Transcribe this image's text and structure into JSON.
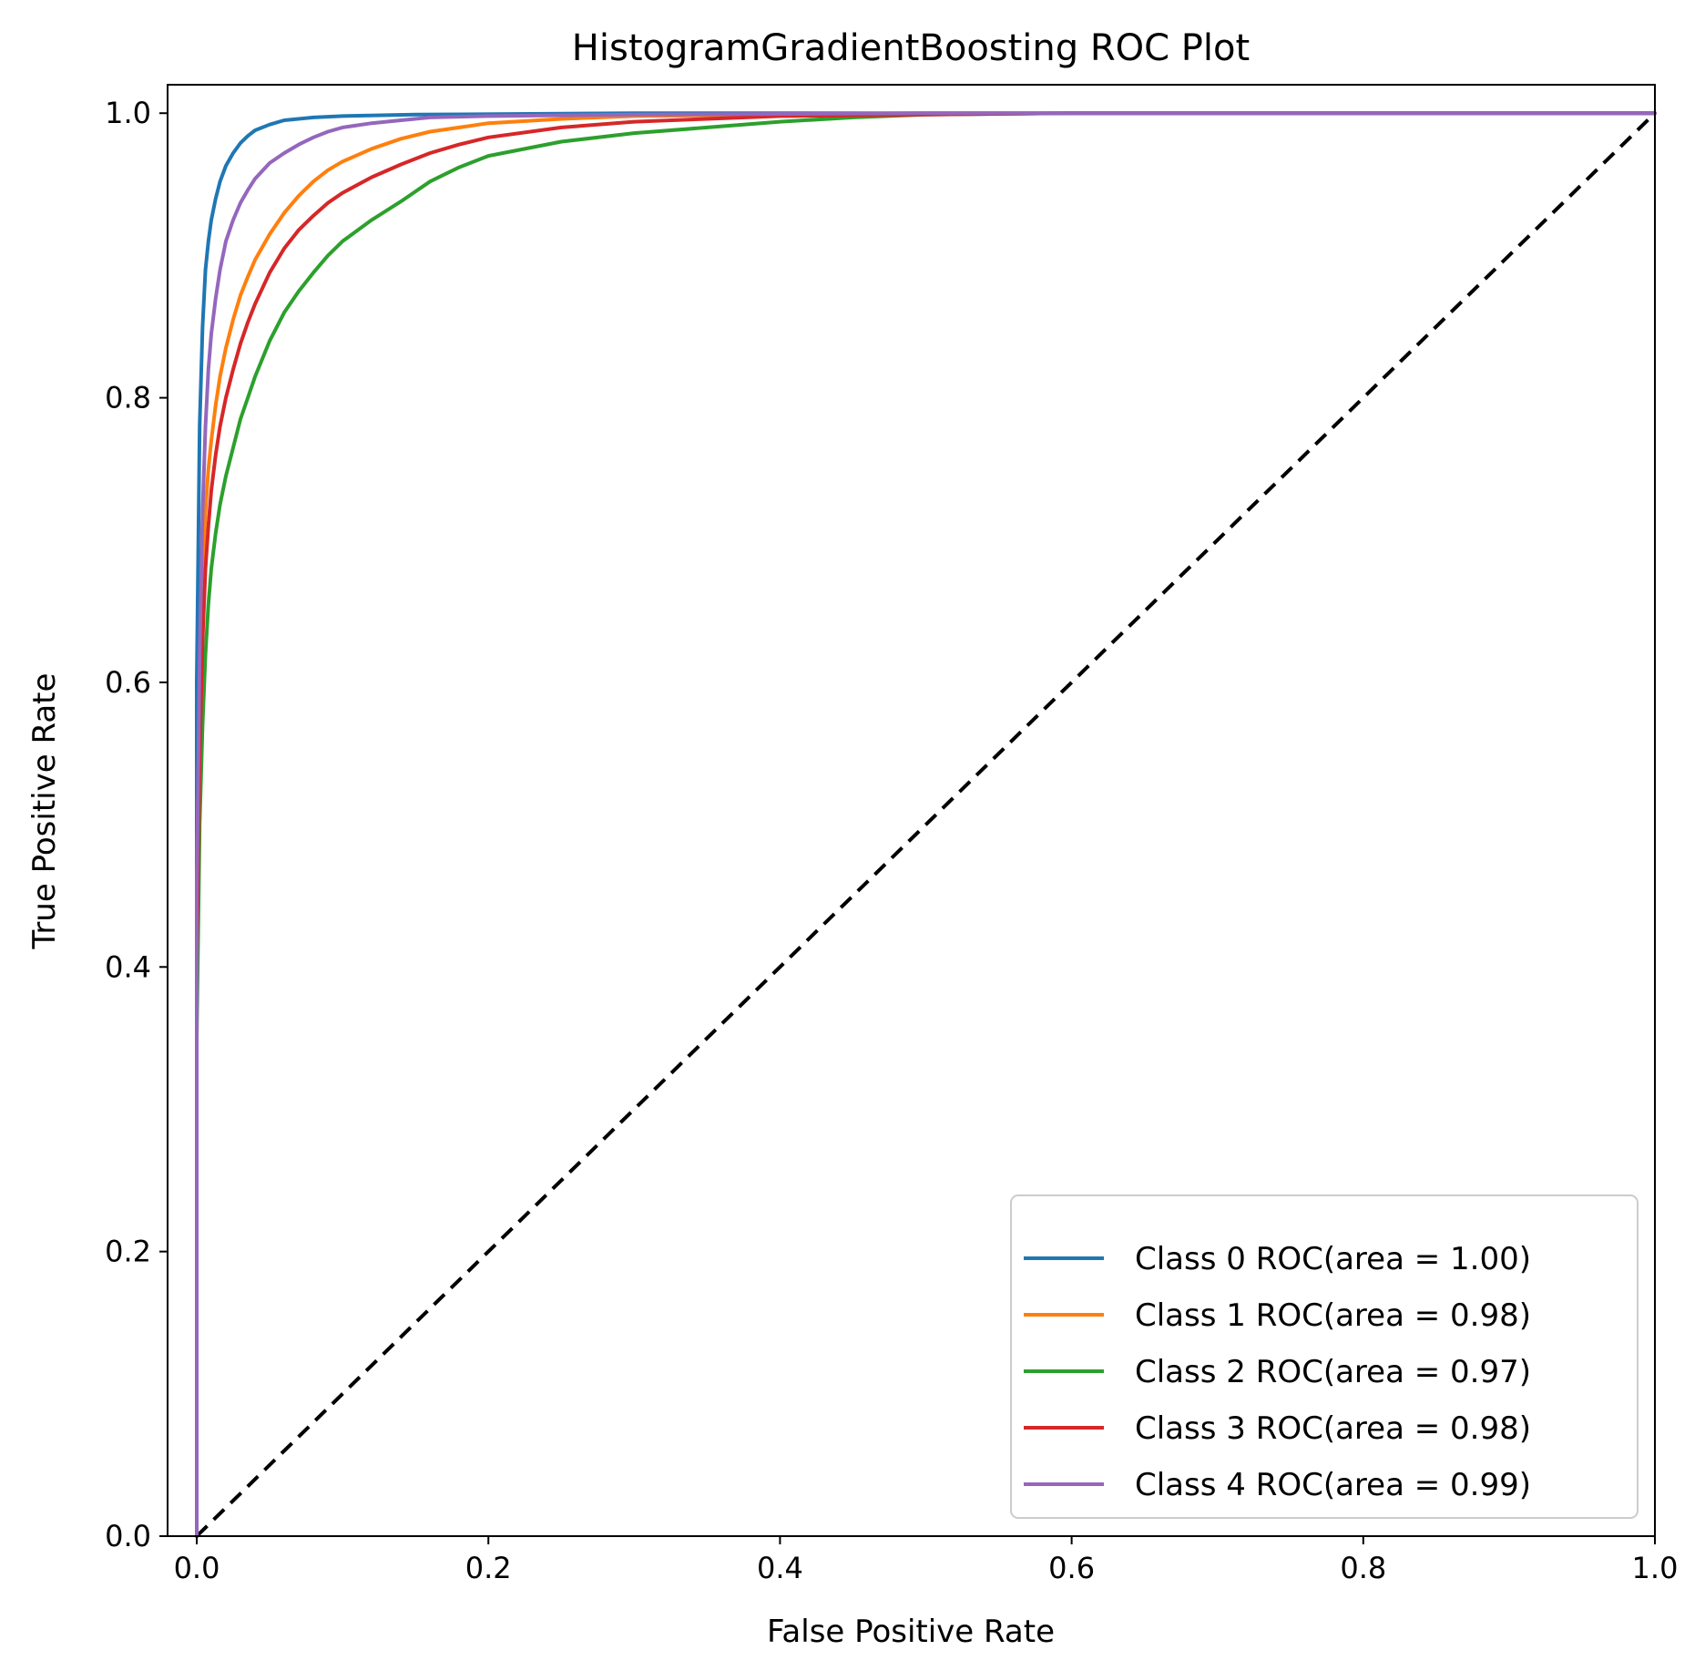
{
  "chart_data": {
    "type": "line",
    "title": "HistogramGradientBoosting ROC Plot",
    "xlabel": "False Positive Rate",
    "ylabel": "True Positive Rate",
    "xlim": [
      -0.02,
      1.0
    ],
    "ylim": [
      0.0,
      1.02
    ],
    "xticks": [
      0.0,
      0.2,
      0.4,
      0.6,
      0.8,
      1.0
    ],
    "xtick_labels": [
      "0.0",
      "0.2",
      "0.4",
      "0.6",
      "0.8",
      "1.0"
    ],
    "yticks": [
      0.0,
      0.2,
      0.4,
      0.6,
      0.8,
      1.0
    ],
    "ytick_labels": [
      "0.0",
      "0.2",
      "0.4",
      "0.6",
      "0.8",
      "1.0"
    ],
    "grid": false,
    "legend_position": "lower-right",
    "reference_line": {
      "x": [
        0,
        1
      ],
      "y": [
        0,
        1
      ],
      "style": "dashed",
      "color": "#000000"
    },
    "series": [
      {
        "name": "Class 0 ROC(area = 1.00)",
        "color": "#1f77b4",
        "x": [
          0,
          0.0,
          0.002,
          0.004,
          0.006,
          0.008,
          0.01,
          0.013,
          0.016,
          0.02,
          0.025,
          0.03,
          0.035,
          0.04,
          0.05,
          0.06,
          0.08,
          0.1,
          0.15,
          0.3,
          1.0
        ],
        "y": [
          0,
          0.6,
          0.78,
          0.85,
          0.89,
          0.91,
          0.925,
          0.94,
          0.952,
          0.963,
          0.972,
          0.979,
          0.984,
          0.988,
          0.992,
          0.995,
          0.997,
          0.998,
          0.999,
          1.0,
          1.0
        ]
      },
      {
        "name": "Class 1 ROC(area = 0.98)",
        "color": "#ff7f0e",
        "x": [
          0,
          0.0,
          0.002,
          0.004,
          0.006,
          0.008,
          0.01,
          0.013,
          0.016,
          0.02,
          0.025,
          0.03,
          0.035,
          0.04,
          0.05,
          0.06,
          0.07,
          0.08,
          0.09,
          0.1,
          0.12,
          0.14,
          0.16,
          0.18,
          0.2,
          0.25,
          0.3,
          0.4,
          0.5,
          1.0
        ],
        "y": [
          0,
          0.45,
          0.6,
          0.68,
          0.72,
          0.75,
          0.77,
          0.795,
          0.815,
          0.835,
          0.855,
          0.872,
          0.885,
          0.897,
          0.915,
          0.93,
          0.942,
          0.952,
          0.96,
          0.966,
          0.975,
          0.982,
          0.987,
          0.99,
          0.993,
          0.996,
          0.998,
          0.999,
          1.0,
          1.0
        ]
      },
      {
        "name": "Class 2 ROC(area = 0.97)",
        "color": "#2ca02c",
        "x": [
          0,
          0.0,
          0.002,
          0.004,
          0.006,
          0.008,
          0.01,
          0.013,
          0.016,
          0.02,
          0.025,
          0.03,
          0.035,
          0.04,
          0.05,
          0.06,
          0.07,
          0.08,
          0.09,
          0.1,
          0.12,
          0.14,
          0.16,
          0.18,
          0.2,
          0.25,
          0.3,
          0.35,
          0.4,
          0.45,
          0.5,
          0.6,
          1.0
        ],
        "y": [
          0,
          0.35,
          0.5,
          0.57,
          0.62,
          0.655,
          0.68,
          0.705,
          0.725,
          0.745,
          0.765,
          0.785,
          0.8,
          0.815,
          0.84,
          0.86,
          0.875,
          0.888,
          0.9,
          0.91,
          0.925,
          0.938,
          0.952,
          0.962,
          0.97,
          0.98,
          0.986,
          0.99,
          0.994,
          0.997,
          0.999,
          1.0,
          1.0
        ]
      },
      {
        "name": "Class 3 ROC(area = 0.98)",
        "color": "#d62728",
        "x": [
          0,
          0.0,
          0.002,
          0.004,
          0.006,
          0.008,
          0.01,
          0.013,
          0.016,
          0.02,
          0.025,
          0.03,
          0.035,
          0.04,
          0.05,
          0.06,
          0.07,
          0.08,
          0.09,
          0.1,
          0.12,
          0.14,
          0.16,
          0.18,
          0.2,
          0.25,
          0.3,
          0.35,
          0.4,
          0.5,
          0.6,
          1.0
        ],
        "y": [
          0,
          0.4,
          0.55,
          0.63,
          0.68,
          0.71,
          0.735,
          0.76,
          0.78,
          0.8,
          0.82,
          0.838,
          0.853,
          0.866,
          0.888,
          0.905,
          0.918,
          0.928,
          0.937,
          0.944,
          0.955,
          0.964,
          0.972,
          0.978,
          0.983,
          0.99,
          0.994,
          0.996,
          0.998,
          0.999,
          1.0,
          1.0
        ]
      },
      {
        "name": "Class 4 ROC(area = 0.99)",
        "color": "#9467bd",
        "x": [
          0,
          0.0,
          0.002,
          0.004,
          0.006,
          0.008,
          0.01,
          0.013,
          0.016,
          0.02,
          0.025,
          0.03,
          0.035,
          0.04,
          0.05,
          0.06,
          0.07,
          0.08,
          0.09,
          0.1,
          0.12,
          0.14,
          0.16,
          0.2,
          0.3,
          0.5,
          1.0
        ],
        "y": [
          0,
          0.45,
          0.62,
          0.72,
          0.78,
          0.82,
          0.845,
          0.87,
          0.89,
          0.91,
          0.925,
          0.937,
          0.946,
          0.954,
          0.965,
          0.972,
          0.978,
          0.983,
          0.987,
          0.99,
          0.993,
          0.995,
          0.997,
          0.998,
          0.999,
          1.0,
          1.0
        ]
      }
    ]
  }
}
